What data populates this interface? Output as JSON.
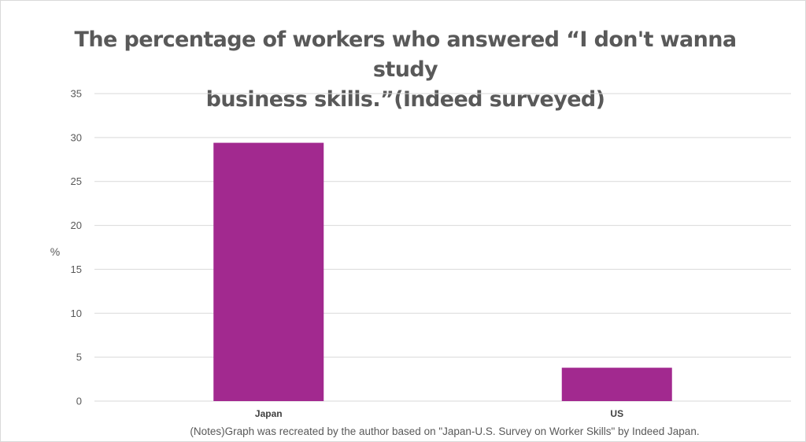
{
  "chart_data": {
    "type": "bar",
    "title_lines": [
      "The percentage of workers who answered “I don't  wanna study",
      "business skills.”(Indeed surveyed)"
    ],
    "categories": [
      "Japan",
      "US"
    ],
    "values": [
      29.4,
      3.8
    ],
    "ylabel": "%",
    "xlabel": "",
    "ylim": [
      0,
      35
    ],
    "yticks": [
      0,
      5,
      10,
      15,
      20,
      25,
      30,
      35
    ],
    "grid": true,
    "legend": "none",
    "bar_color": "#A2298F",
    "note": "(Notes)Graph was recreated by the author based on  \"Japan-U.S. Survey on Worker Skills\" by Indeed Japan."
  }
}
